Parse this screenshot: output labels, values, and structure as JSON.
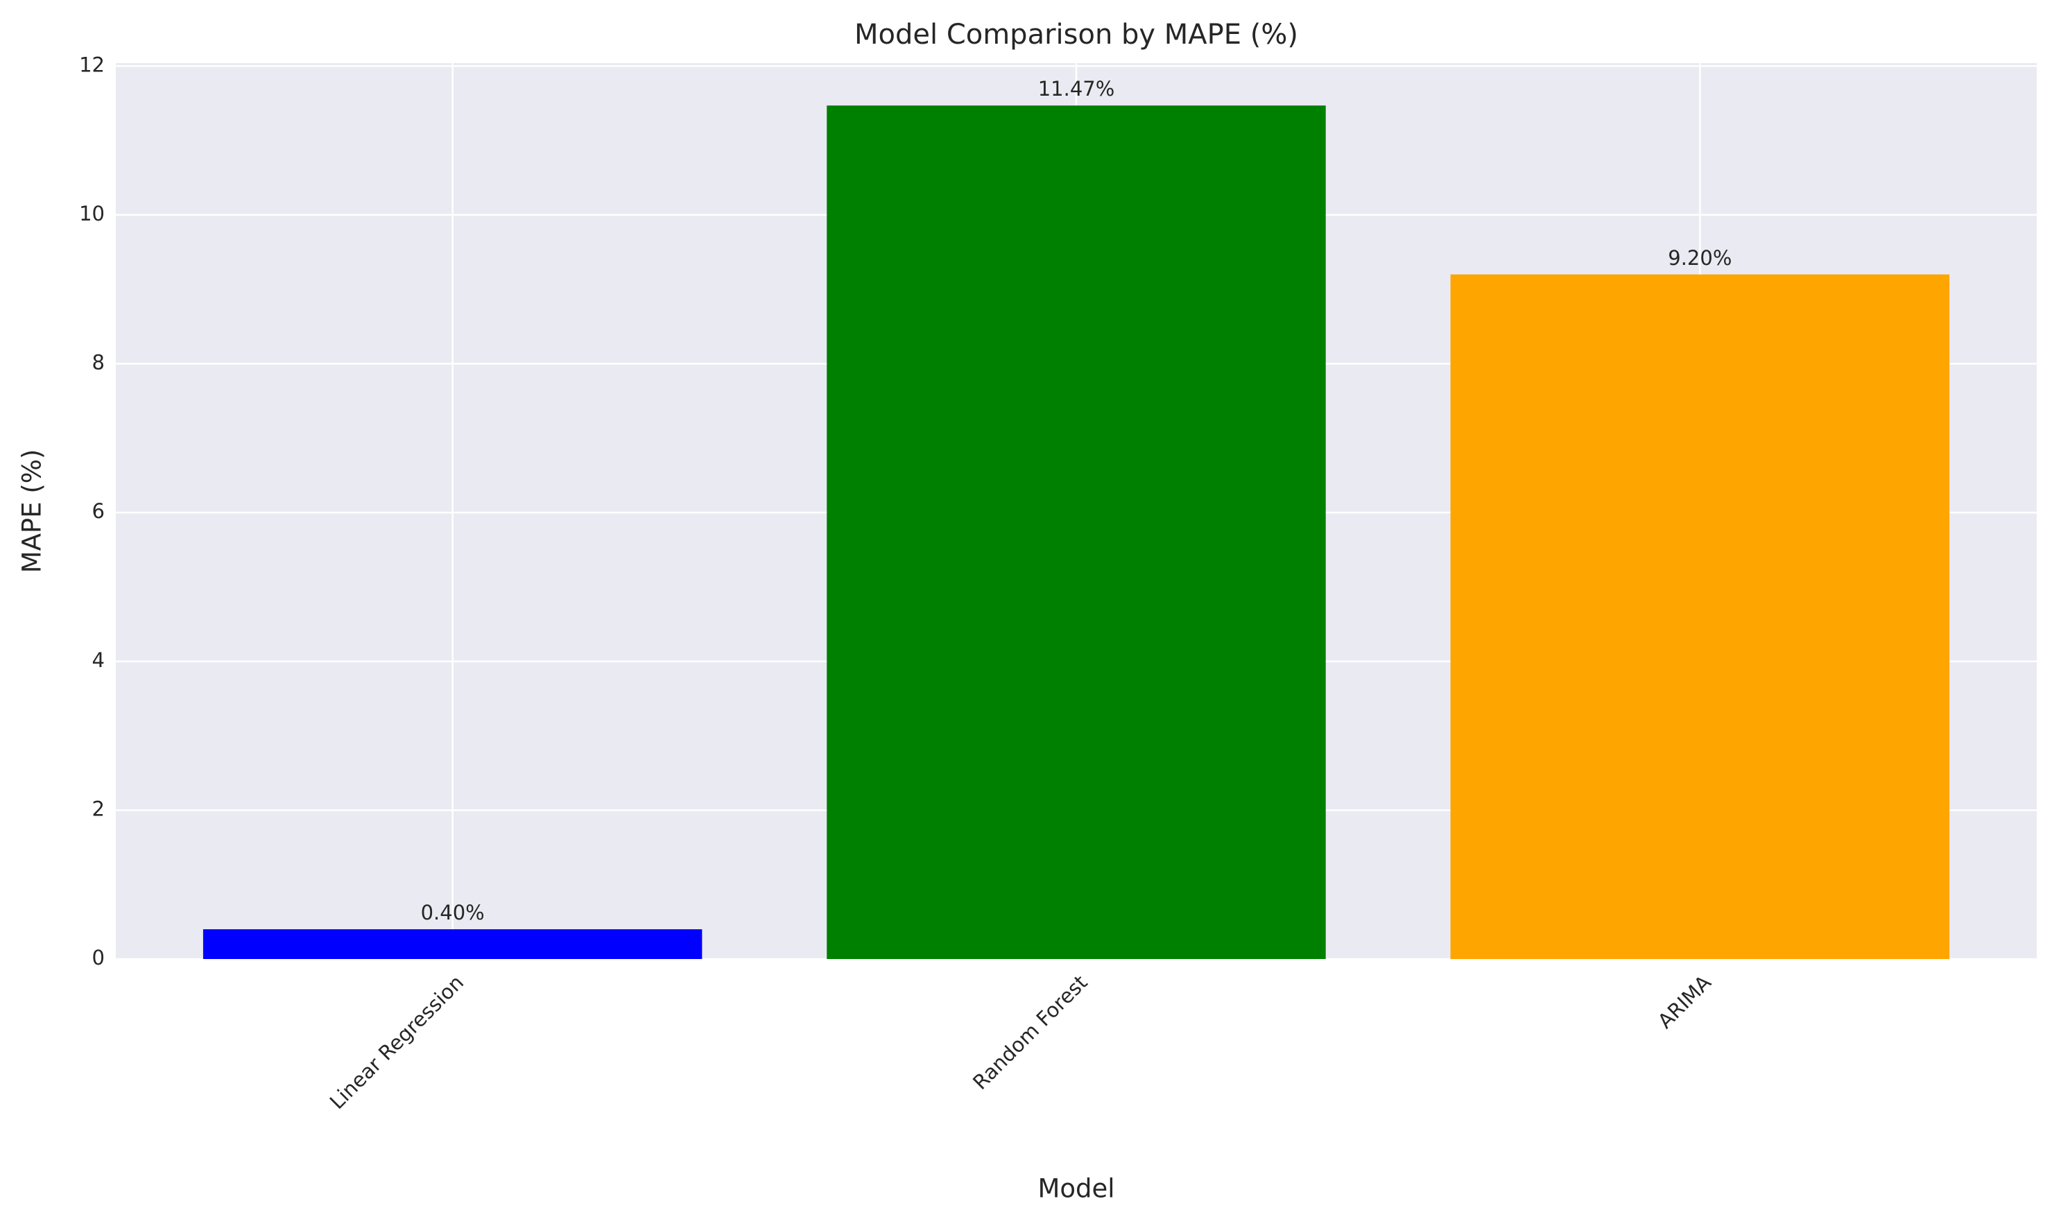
{
  "chart_data": {
    "type": "bar",
    "title": "Model Comparison by MAPE (%)",
    "x_label": "Model",
    "y_label": "MAPE (%)",
    "categories": [
      "Linear Regression",
      "Random Forest",
      "ARIMA"
    ],
    "values": [
      0.4,
      11.47,
      9.2
    ],
    "value_labels": [
      "0.40%",
      "11.47%",
      "9.20%"
    ],
    "colors": [
      "blue",
      "green",
      "orange"
    ],
    "ylim": [
      0,
      12.04
    ],
    "yticks": [
      0,
      2,
      4,
      6,
      8,
      10,
      12
    ],
    "grid": true
  }
}
